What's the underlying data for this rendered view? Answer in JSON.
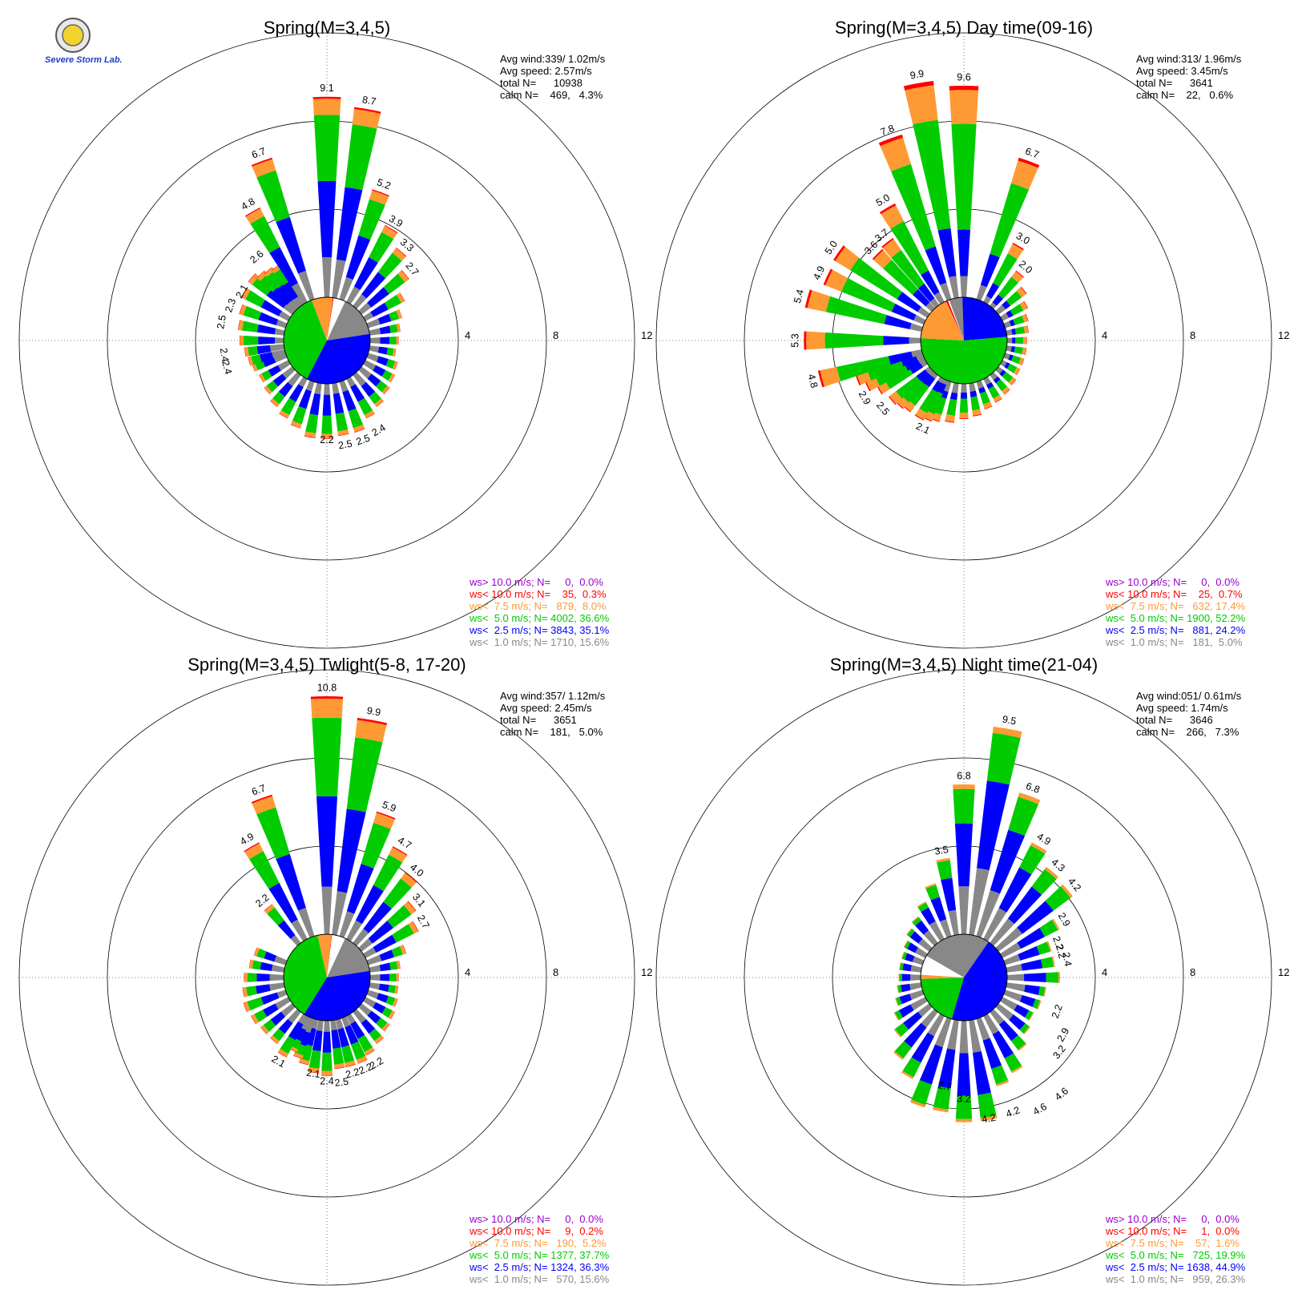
{
  "logo": {
    "text": "Severe Storm Lab."
  },
  "colors": {
    "bin_gt10": "#9900cc",
    "bin_lt10": "#ff0000",
    "bin_lt75": "#ff9933",
    "bin_lt5": "#00cc00",
    "bin_lt25": "#0000ff",
    "bin_lt1": "#888888"
  },
  "chart_data": [
    {
      "type": "wind-rose",
      "title": "Spring(M=3,4,5)",
      "rlim": [
        0,
        12
      ],
      "ring_labels": [
        "4",
        "8",
        "12"
      ],
      "stats": [
        "Avg wind:339/ 1.02m/s",
        "Avg speed: 2.57m/s",
        "total N=      10938",
        "calm N=    469,   4.3%"
      ],
      "legend": [
        "ws> 10.0 m/s; N=     0,  0.0%",
        "ws< 10.0 m/s; N=    35,  0.3%",
        "ws<  7.5 m/s; N=   879,  8.0%",
        "ws<  5.0 m/s; N= 4002, 36.6%",
        "ws<  2.5 m/s; N= 3843, 35.1%",
        "ws<  1.0 m/s; N= 1710, 15.6%"
      ],
      "sector_totals": [
        9.1,
        8.7,
        5.2,
        3.9,
        3.3,
        2.7,
        2.0,
        1.6,
        1.4,
        1.3,
        1.2,
        1.4,
        1.5,
        1.6,
        1.8,
        2.0,
        2.4,
        2.4,
        2.5,
        2.5,
        2.2,
        2.0,
        1.8,
        1.6,
        1.5,
        1.6,
        1.7,
        1.8,
        2.0,
        2.1,
        2.2,
        2.4,
        2.5,
        2.3,
        2.2,
        2.1,
        2.6,
        4.8,
        6.7
      ],
      "labels": [
        {
          "dir": 0,
          "text": "9.1"
        },
        {
          "dir": 10,
          "text": "8.7"
        },
        {
          "dir": 20,
          "text": "5.2"
        },
        {
          "dir": 30,
          "text": "3.9"
        },
        {
          "dir": 40,
          "text": "3.3"
        },
        {
          "dir": 50,
          "text": "2.7"
        },
        {
          "dir": 150,
          "text": "2.4"
        },
        {
          "dir": 160,
          "text": "2.5"
        },
        {
          "dir": 170,
          "text": "2.5"
        },
        {
          "dir": 180,
          "text": "2.2"
        },
        {
          "dir": 255,
          "text": "2.4"
        },
        {
          "dir": 262,
          "text": "2.4"
        },
        {
          "dir": 280,
          "text": "2.5"
        },
        {
          "dir": 290,
          "text": "2.3"
        },
        {
          "dir": 300,
          "text": "2.1"
        },
        {
          "dir": 320,
          "text": "2.6"
        },
        {
          "dir": 330,
          "text": "4.8"
        },
        {
          "dir": 340,
          "text": "6.7"
        }
      ],
      "calm_pie": [
        {
          "bin": "lt1",
          "percent": 15.6
        },
        {
          "bin": "lt25",
          "percent": 35.1
        },
        {
          "bin": "lt5",
          "percent": 36.6
        },
        {
          "bin": "lt75",
          "percent": 8.0
        },
        {
          "bin": "lt10",
          "percent": 0.3
        }
      ]
    },
    {
      "type": "wind-rose",
      "title": "Spring(M=3,4,5) Day time(09-16)",
      "rlim": [
        0,
        12
      ],
      "ring_labels": [
        "4",
        "8",
        "12"
      ],
      "stats": [
        "Avg wind:313/ 1.96m/s",
        "Avg speed: 3.45m/s",
        "total N=      3641",
        "calm N=    22,   0.6%"
      ],
      "legend": [
        "ws> 10.0 m/s; N=     0,  0.0%",
        "ws< 10.0 m/s; N=    25,  0.7%",
        "ws<  7.5 m/s; N=   632, 17.4%",
        "ws<  5.0 m/s; N= 1900, 52.2%",
        "ws<  2.5 m/s; N=   881, 24.2%",
        "ws<  1.0 m/s; N=   181,  5.0%"
      ],
      "sector_totals": [
        9.6,
        6.7,
        3.0,
        2.0,
        1.6,
        1.3,
        1.1,
        1.0,
        0.9,
        0.9,
        0.9,
        0.9,
        1.0,
        1.1,
        1.2,
        1.3,
        1.5,
        1.6,
        1.8,
        1.9,
        2.0,
        2.1,
        2.1,
        2.2,
        2.3,
        2.5,
        2.9,
        3.2,
        4.8,
        5.3,
        5.4,
        4.9,
        5.0,
        3.6,
        3.7,
        5.0,
        7.8,
        9.9
      ],
      "labels": [
        {
          "dir": 0,
          "text": "9.6"
        },
        {
          "dir": 20,
          "text": "6.7"
        },
        {
          "dir": 30,
          "text": "3.0"
        },
        {
          "dir": 40,
          "text": "2.0"
        },
        {
          "dir": 205,
          "text": "2.1"
        },
        {
          "dir": 230,
          "text": "2.5"
        },
        {
          "dir": 240,
          "text": "2.9"
        },
        {
          "dir": 255,
          "text": "4.8"
        },
        {
          "dir": 270,
          "text": "5.3"
        },
        {
          "dir": 285,
          "text": "5.4"
        },
        {
          "dir": 295,
          "text": "4.9"
        },
        {
          "dir": 305,
          "text": "5.0"
        },
        {
          "dir": 315,
          "text": "3.6"
        },
        {
          "dir": 322,
          "text": "3.7"
        },
        {
          "dir": 330,
          "text": "5.0"
        },
        {
          "dir": 340,
          "text": "7.8"
        },
        {
          "dir": 350,
          "text": "9.9"
        }
      ],
      "calm_pie": [
        {
          "bin": "lt1",
          "percent": 5.0
        },
        {
          "bin": "lt25",
          "percent": 24.2
        },
        {
          "bin": "lt5",
          "percent": 52.2
        },
        {
          "bin": "lt75",
          "percent": 17.4
        },
        {
          "bin": "lt10",
          "percent": 0.7
        }
      ]
    },
    {
      "type": "wind-rose",
      "title": "Spring(M=3,4,5) Twlight(5-8, 17-20)",
      "rlim": [
        0,
        12
      ],
      "ring_labels": [
        "4",
        "8",
        "12"
      ],
      "stats": [
        "Avg wind:357/ 1.12m/s",
        "Avg speed: 2.45m/s",
        "total N=      3651",
        "calm N=    181,   5.0%"
      ],
      "legend": [
        "ws> 10.0 m/s; N=     0,  0.0%",
        "ws< 10.0 m/s; N=     9,  0.2%",
        "ws<  7.5 m/s; N=   190,  5.2%",
        "ws<  5.0 m/s; N= 1377, 37.7%",
        "ws<  2.5 m/s; N= 1324, 36.3%",
        "ws<  1.0 m/s; N=   570, 15.6%"
      ],
      "sector_totals": [
        10.8,
        9.9,
        5.9,
        4.7,
        4.0,
        3.1,
        2.7,
        1.8,
        1.4,
        1.3,
        1.3,
        1.4,
        1.5,
        1.6,
        1.8,
        2.0,
        2.2,
        2.2,
        2.2,
        2.5,
        2.4,
        2.1,
        1.9,
        1.7,
        2.1,
        1.8,
        1.8,
        1.9,
        2.0,
        1.9,
        1.8,
        1.6,
        1.5,
        2.2,
        4.9,
        6.7
      ],
      "labels": [
        {
          "dir": 0,
          "text": "10.8"
        },
        {
          "dir": 10,
          "text": "9.9"
        },
        {
          "dir": 20,
          "text": "5.9"
        },
        {
          "dir": 30,
          "text": "4.7"
        },
        {
          "dir": 40,
          "text": "4.0"
        },
        {
          "dir": 50,
          "text": "3.1"
        },
        {
          "dir": 60,
          "text": "2.7"
        },
        {
          "dir": 150,
          "text": "2.2"
        },
        {
          "dir": 157,
          "text": "2.2"
        },
        {
          "dir": 165,
          "text": "2.2"
        },
        {
          "dir": 172,
          "text": "2.5"
        },
        {
          "dir": 180,
          "text": "2.4"
        },
        {
          "dir": 188,
          "text": "2.1"
        },
        {
          "dir": 210,
          "text": "2.1"
        },
        {
          "dir": 320,
          "text": "2.2"
        },
        {
          "dir": 330,
          "text": "4.9"
        },
        {
          "dir": 340,
          "text": "6.7"
        }
      ],
      "calm_pie": [
        {
          "bin": "lt1",
          "percent": 15.6
        },
        {
          "bin": "lt25",
          "percent": 36.3
        },
        {
          "bin": "lt5",
          "percent": 37.7
        },
        {
          "bin": "lt75",
          "percent": 5.2
        },
        {
          "bin": "lt10",
          "percent": 0.2
        }
      ]
    },
    {
      "type": "wind-rose",
      "title": "Spring(M=3,4,5) Night time(21-04)",
      "rlim": [
        0,
        12
      ],
      "ring_labels": [
        "4",
        "8",
        "12"
      ],
      "stats": [
        "Avg wind:051/ 0.61m/s",
        "Avg speed: 1.74m/s",
        "total N=      3646",
        "calm N=    266,   7.3%"
      ],
      "legend": [
        "ws> 10.0 m/s; N=     0,  0.0%",
        "ws< 10.0 m/s; N=     1,  0.0%",
        "ws<  7.5 m/s; N=    57,  1.6%",
        "ws<  5.0 m/s; N=   725, 19.9%",
        "ws<  2.5 m/s; N= 1638, 44.9%",
        "ws<  1.0 m/s; N=   959, 26.3%"
      ],
      "sector_totals": [
        6.8,
        9.5,
        6.8,
        4.9,
        4.3,
        4.2,
        2.9,
        2.2,
        2.2,
        2.4,
        1.8,
        1.7,
        1.6,
        1.8,
        2.2,
        2.9,
        3.2,
        4.6,
        4.6,
        4.2,
        4.2,
        3.2,
        2.7,
        2.0,
        1.6,
        1.3,
        1.1,
        1.0,
        1.0,
        1.0,
        1.1,
        1.3,
        1.5,
        1.9,
        2.5,
        3.5
      ],
      "labels": [
        {
          "dir": 0,
          "text": "6.8"
        },
        {
          "dir": 10,
          "text": "9.5"
        },
        {
          "dir": 20,
          "text": "6.8"
        },
        {
          "dir": 30,
          "text": "4.9"
        },
        {
          "dir": 40,
          "text": "4.3"
        },
        {
          "dir": 50,
          "text": "4.2"
        },
        {
          "dir": 60,
          "text": "2.9"
        },
        {
          "dir": 70,
          "text": "2.2"
        },
        {
          "dir": 75,
          "text": "2.2"
        },
        {
          "dir": 80,
          "text": "2.4"
        },
        {
          "dir": 110,
          "text": "2.2"
        },
        {
          "dir": 120,
          "text": "2.9"
        },
        {
          "dir": 128,
          "text": "3.2"
        },
        {
          "dir": 140,
          "text": "4.6"
        },
        {
          "dir": 150,
          "text": "4.6"
        },
        {
          "dir": 160,
          "text": "4.2"
        },
        {
          "dir": 170,
          "text": "4.2"
        },
        {
          "dir": 180,
          "text": "3.2"
        },
        {
          "dir": 190,
          "text": "2.7"
        },
        {
          "dir": 350,
          "text": "3.5"
        }
      ],
      "calm_pie": [
        {
          "bin": "lt1",
          "percent": 26.3
        },
        {
          "bin": "lt25",
          "percent": 44.9
        },
        {
          "bin": "lt5",
          "percent": 19.9
        },
        {
          "bin": "lt75",
          "percent": 1.6
        },
        {
          "bin": "lt10",
          "percent": 0.0
        }
      ]
    }
  ]
}
